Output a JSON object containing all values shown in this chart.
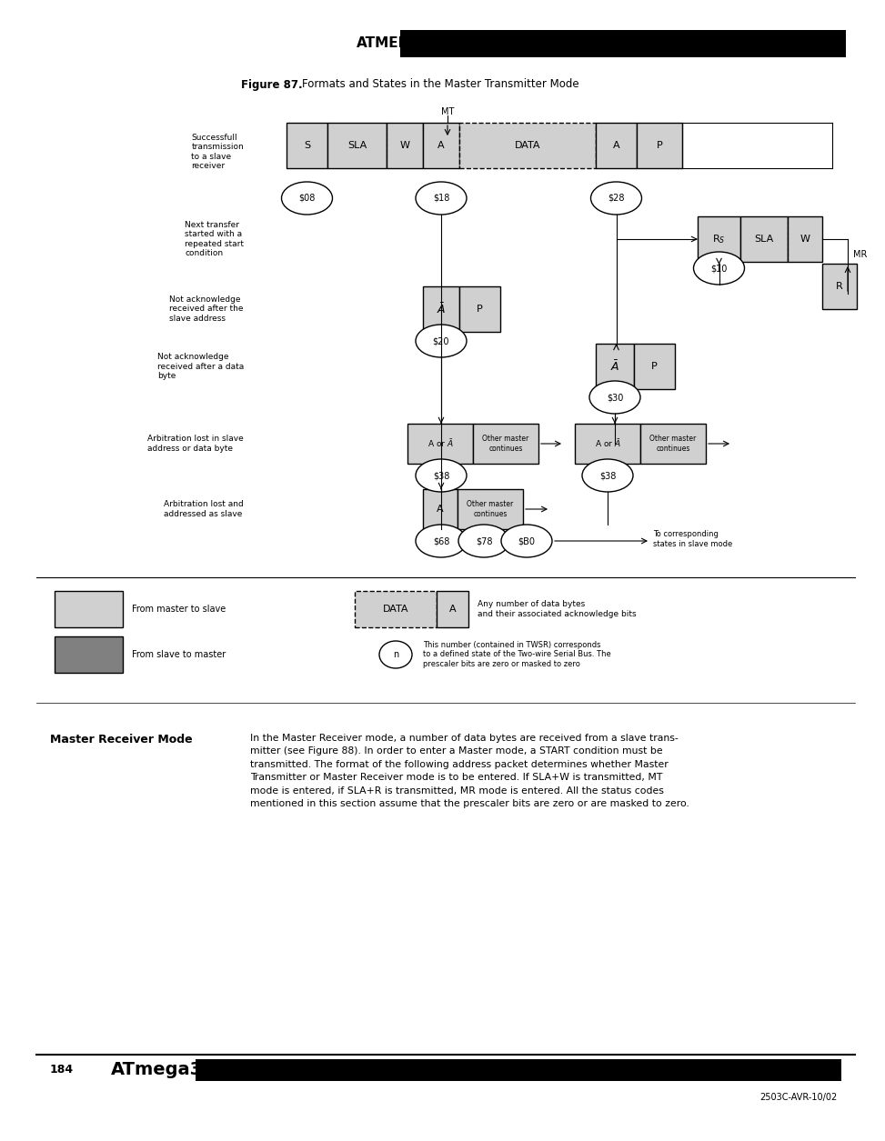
{
  "figure_title": "Figure 87.",
  "figure_subtitle": "Formats and States in the Master Transmitter Mode",
  "page_number": "184",
  "chip_name": "ATmega32(L)",
  "doc_number": "2503C-AVR-10/02",
  "bg_color": "#ffffff",
  "row_labels": [
    "Successfull\ntransmission\nto a slave\nreceiver",
    "Next transfer\nstarted with a\nrepeated start\ncondition",
    "Not acknowledge\nreceived after the\nslave address",
    "Not acknowledge\nreceived after a data\nbyte",
    "Arbitration lost in slave\naddress or data byte",
    "Arbitration lost and\naddressed as slave"
  ],
  "legend_light": "From master to slave",
  "legend_dark": "From slave to master",
  "legend_data_text": "Any number of data bytes\nand their associated acknowledge bits",
  "legend_n_text": "This number (contained in TWSR) corresponds\nto a defined state of the Two-wire Serial Bus. The\nprescaler bits are zero or masked to zero",
  "mt_label": "MT",
  "mr_label": "MR",
  "light_gray": "#d0d0d0",
  "dark_gray": "#808080"
}
